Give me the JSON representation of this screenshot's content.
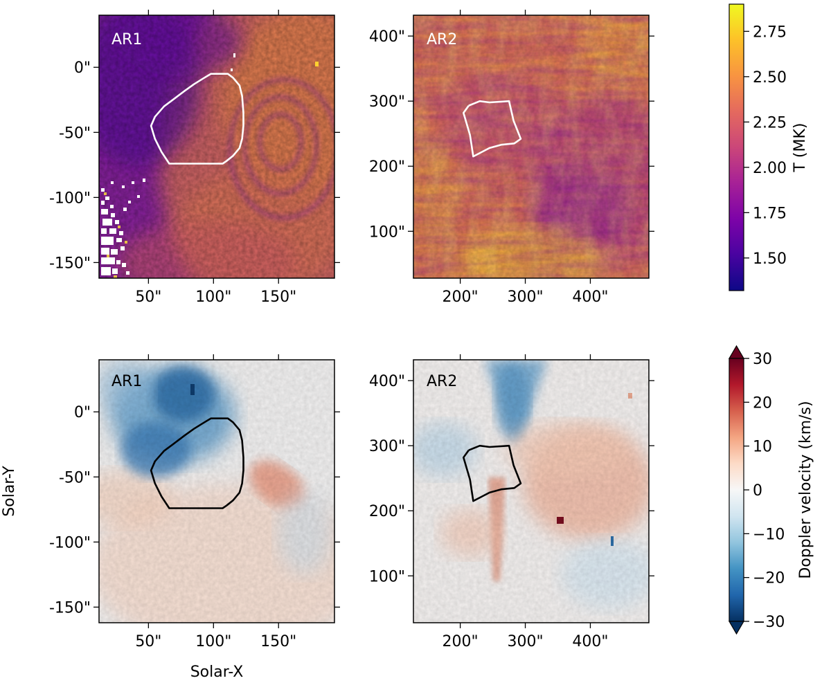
{
  "figure": {
    "xlabel": "Solar-X",
    "ylabel": "Solar-Y"
  },
  "colorbars": {
    "temperature": {
      "label": "T (MK)",
      "range": [
        1.32,
        2.9
      ],
      "ticks": [
        "1.50",
        "1.75",
        "2.00",
        "2.25",
        "2.50",
        "2.75"
      ],
      "tick_values": [
        1.5,
        1.75,
        2.0,
        2.25,
        2.5,
        2.75
      ],
      "colormap": "plasma"
    },
    "doppler": {
      "label": "Doppler velocity (km/s)",
      "range": [
        -30,
        30
      ],
      "ticks": [
        "30",
        "20",
        "10",
        "0",
        "−10",
        "−20",
        "−30"
      ],
      "tick_values": [
        30,
        20,
        10,
        0,
        -10,
        -20,
        -30
      ],
      "colormap": "RdBu_r",
      "extend": "both"
    }
  },
  "chart_data": [
    {
      "type": "heatmap",
      "id": "ar1_temperature",
      "label": "AR1",
      "quantity": "Temperature (MK)",
      "xlim": [
        12,
        193
      ],
      "ylim": [
        -162,
        40
      ],
      "xticks": [
        50,
        100,
        150
      ],
      "xticklabels": [
        "50\"",
        "100\"",
        "150\""
      ],
      "yticks": [
        0,
        -50,
        -100,
        -150
      ],
      "yticklabels": [
        "0\"",
        "-50\"",
        "-100\"",
        "-150\""
      ],
      "contour_color": "#ffffff",
      "contour": [
        [
          103,
          -5
        ],
        [
          111,
          -5
        ],
        [
          115,
          -8
        ],
        [
          120,
          -14
        ],
        [
          122,
          -22
        ],
        [
          123,
          -35
        ],
        [
          123,
          -45
        ],
        [
          122,
          -55
        ],
        [
          120,
          -62
        ],
        [
          115,
          -68
        ],
        [
          110,
          -72
        ],
        [
          107,
          -74
        ],
        [
          96,
          -74
        ],
        [
          66,
          -74
        ],
        [
          60,
          -65
        ],
        [
          55,
          -55
        ],
        [
          52,
          -45
        ],
        [
          55,
          -38
        ],
        [
          62,
          -30
        ],
        [
          70,
          -24
        ],
        [
          78,
          -18
        ],
        [
          85,
          -13
        ],
        [
          93,
          -8
        ],
        [
          98,
          -5
        ],
        [
          103,
          -5
        ]
      ]
    },
    {
      "type": "heatmap",
      "id": "ar2_temperature",
      "label": "AR2",
      "quantity": "Temperature (MK)",
      "xlim": [
        128,
        490
      ],
      "ylim": [
        28,
        432
      ],
      "xticks": [
        200,
        300,
        400
      ],
      "xticklabels": [
        "200\"",
        "300\"",
        "400\""
      ],
      "yticks": [
        100,
        200,
        300,
        400
      ],
      "yticklabels": [
        "100\"",
        "200\"",
        "300\"",
        "400\""
      ],
      "contour_color": "#ffffff",
      "contour": [
        [
          213,
          293
        ],
        [
          230,
          300
        ],
        [
          245,
          298
        ],
        [
          275,
          300
        ],
        [
          282,
          270
        ],
        [
          293,
          242
        ],
        [
          283,
          235
        ],
        [
          263,
          233
        ],
        [
          245,
          228
        ],
        [
          220,
          215
        ],
        [
          215,
          248
        ],
        [
          205,
          282
        ],
        [
          213,
          293
        ]
      ]
    },
    {
      "type": "heatmap",
      "id": "ar1_doppler",
      "label": "AR1",
      "quantity": "Doppler velocity (km/s)",
      "xlim": [
        12,
        193
      ],
      "ylim": [
        -162,
        40
      ],
      "xticks": [
        50,
        100,
        150
      ],
      "xticklabels": [
        "50\"",
        "100\"",
        "150\""
      ],
      "yticks": [
        0,
        -50,
        -100,
        -150
      ],
      "yticklabels": [
        "0\"",
        "-50\"",
        "-100\"",
        "-150\""
      ],
      "contour_color": "#000000",
      "contour": [
        [
          103,
          -5
        ],
        [
          111,
          -5
        ],
        [
          115,
          -8
        ],
        [
          120,
          -14
        ],
        [
          122,
          -22
        ],
        [
          123,
          -35
        ],
        [
          123,
          -45
        ],
        [
          122,
          -55
        ],
        [
          120,
          -62
        ],
        [
          115,
          -68
        ],
        [
          110,
          -72
        ],
        [
          107,
          -74
        ],
        [
          96,
          -74
        ],
        [
          66,
          -74
        ],
        [
          60,
          -65
        ],
        [
          55,
          -55
        ],
        [
          52,
          -45
        ],
        [
          55,
          -38
        ],
        [
          62,
          -30
        ],
        [
          70,
          -24
        ],
        [
          78,
          -18
        ],
        [
          85,
          -13
        ],
        [
          93,
          -8
        ],
        [
          98,
          -5
        ],
        [
          103,
          -5
        ]
      ]
    },
    {
      "type": "heatmap",
      "id": "ar2_doppler",
      "label": "AR2",
      "quantity": "Doppler velocity (km/s)",
      "xlim": [
        128,
        490
      ],
      "ylim": [
        28,
        432
      ],
      "xticks": [
        200,
        300,
        400
      ],
      "xticklabels": [
        "200\"",
        "300\"",
        "400\""
      ],
      "yticks": [
        100,
        200,
        300,
        400
      ],
      "yticklabels": [
        "100\"",
        "200\"",
        "300\"",
        "400\""
      ],
      "contour_color": "#000000",
      "contour": [
        [
          213,
          293
        ],
        [
          230,
          300
        ],
        [
          245,
          298
        ],
        [
          275,
          300
        ],
        [
          282,
          270
        ],
        [
          293,
          242
        ],
        [
          283,
          235
        ],
        [
          263,
          233
        ],
        [
          245,
          228
        ],
        [
          220,
          215
        ],
        [
          215,
          248
        ],
        [
          205,
          282
        ],
        [
          213,
          293
        ]
      ]
    }
  ]
}
